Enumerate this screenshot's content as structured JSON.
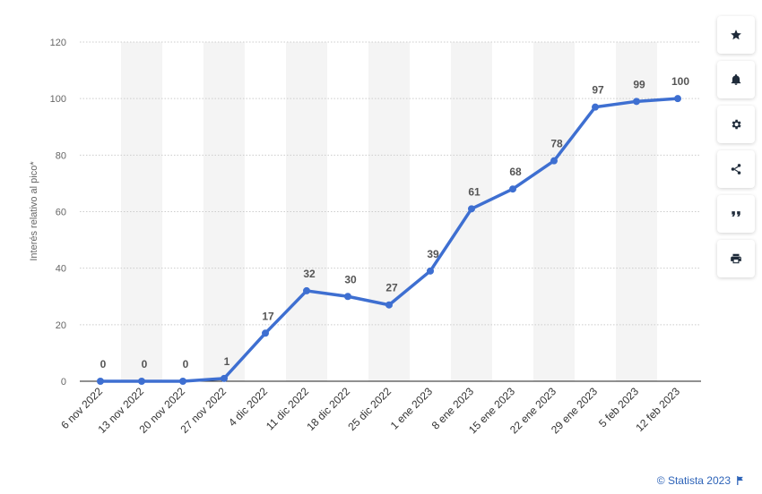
{
  "chart_data": {
    "type": "line",
    "ylabel": "Interés relativo al pico*",
    "xlabel": "",
    "ylim": [
      0,
      120
    ],
    "yticks": [
      0,
      20,
      40,
      60,
      80,
      100,
      120
    ],
    "categories": [
      "6 nov 2022",
      "13 nov 2022",
      "20 nov 2022",
      "27 nov 2022",
      "4 dic 2022",
      "11 dic 2022",
      "18 dic 2022",
      "25 dic 2022",
      "1 ene 2023",
      "8 ene 2023",
      "15 ene 2023",
      "22 ene 2023",
      "29 ene 2023",
      "5 feb 2023",
      "12 feb 2023"
    ],
    "series": [
      {
        "values": [
          0,
          0,
          0,
          1,
          17,
          32,
          30,
          27,
          39,
          61,
          68,
          78,
          97,
          99,
          100
        ],
        "color": "#3e6fd1"
      }
    ],
    "grid": true,
    "alternating_bands": true,
    "data_labels": true
  },
  "toolbar": {
    "buttons": [
      "star-icon",
      "bell-icon",
      "gear-icon",
      "share-icon",
      "quote-icon",
      "print-icon"
    ]
  },
  "credit": {
    "text": "© Statista 2023"
  },
  "colors": {
    "line": "#3e6fd1",
    "band": "#f4f4f4",
    "credit": "#2d63b8"
  }
}
